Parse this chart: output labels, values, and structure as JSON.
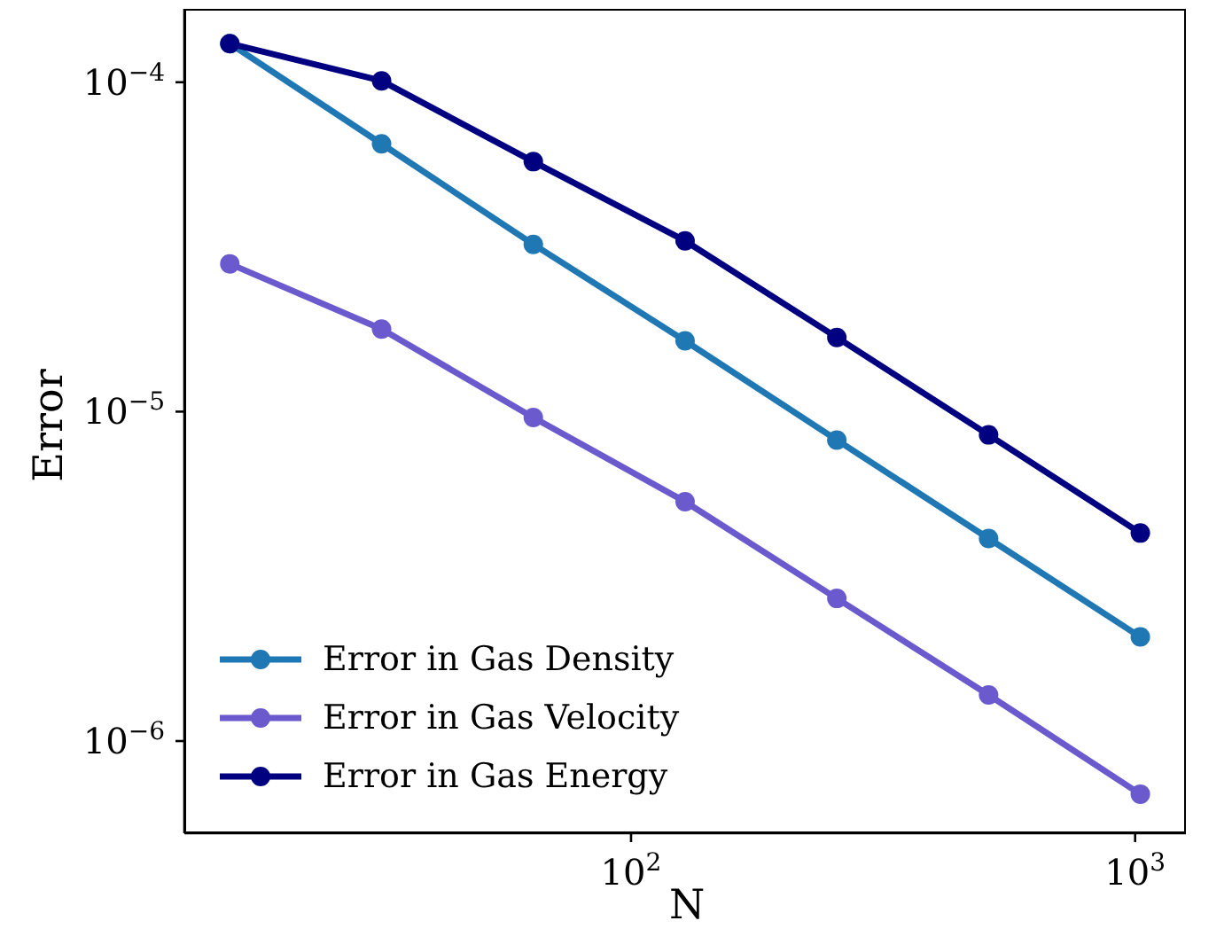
{
  "chart_data": {
    "type": "line",
    "xlabel": "N",
    "ylabel": "Error",
    "log": "xy",
    "marker": "circle",
    "line_style": "solid",
    "grid": false,
    "legend": "bottom left",
    "x": [
      16,
      32,
      64,
      128,
      256,
      512,
      1024
    ],
    "xlim": [
      13,
      1261
    ],
    "xticks": [
      {
        "value": 100,
        "label": "10$^{2}$"
      },
      {
        "value": 1000,
        "label": "10$^{3}$"
      }
    ],
    "ylim": [
      5.25e-07,
      0.000167
    ],
    "yticks": [
      {
        "value": 0.0001,
        "label": "10$^{−4}$"
      },
      {
        "value": 1e-05,
        "label": "10$^{−5}$"
      },
      {
        "value": 1e-06,
        "label": "10$^{−6}$"
      }
    ],
    "series": [
      {
        "name": "Error in Gas Density",
        "color": "#1f77b4",
        "values": [
          0.000131,
          6.5e-05,
          3.22e-05,
          1.64e-05,
          8.2e-06,
          4.12e-06,
          2.07e-06
        ]
      },
      {
        "name": "Error in Gas Velocity",
        "color": "#6a5acd",
        "values": [
          2.81e-05,
          1.78e-05,
          9.6e-06,
          5.33e-06,
          2.71e-06,
          1.38e-06,
          6.9e-07
        ]
      },
      {
        "name": "Error in Gas Energy",
        "color": "#000080",
        "values": [
          0.000131,
          0.000101,
          5.74e-05,
          3.3e-05,
          1.68e-05,
          8.5e-06,
          4.28e-06
        ]
      }
    ]
  }
}
